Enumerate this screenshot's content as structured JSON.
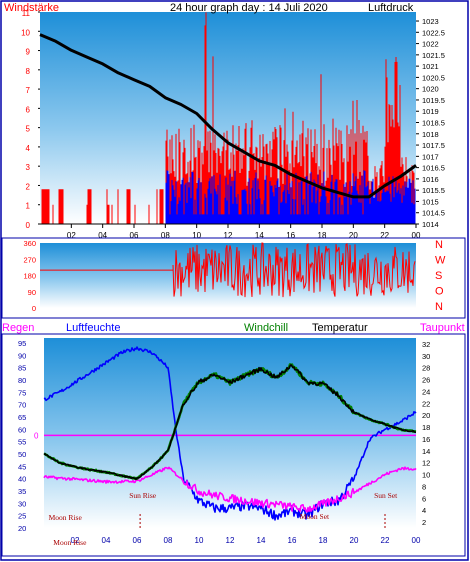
{
  "titles": {
    "windstaerke": "Windstärke",
    "main": "24 hour graph day : 14 Juli 2020",
    "luftdruck": "Luftdruck",
    "regen": "Regen",
    "luftfeuchte": "Luftfeuchte",
    "windchill": "Windchill",
    "temperatur": "Temperatur",
    "taupunkt": "Taupunkt"
  },
  "colors": {
    "wind": "#ff0000",
    "gust_bars": "#0000ff",
    "pressure": "#000000",
    "humidity": "#0000ff",
    "dewpoint": "#ff00ff",
    "windchill": "#008000",
    "rain": "#ff00ff",
    "frame": "#0000aa"
  },
  "chart_data": [
    {
      "type": "bar",
      "name": "wind_pressure",
      "x_ticks": [
        "02",
        "04",
        "06",
        "08",
        "10",
        "12",
        "14",
        "16",
        "18",
        "20",
        "22",
        "00"
      ],
      "left_ticks": [
        "0",
        "1",
        "2",
        "3",
        "4",
        "5",
        "6",
        "7",
        "8",
        "9",
        "10",
        "11"
      ],
      "right_ticks": [
        "1014",
        "1014.5",
        "1015",
        "1015.5",
        "1016",
        "1016.5",
        "1017",
        "1017.5",
        "1018",
        "1018.5",
        "1019",
        "1019.5",
        "1020",
        "1020.5",
        "1021",
        "1021.5",
        "1022",
        "1022.5",
        "1023"
      ],
      "wind_ylim": [
        0,
        11
      ],
      "pressure_ylim": [
        1014,
        1023.4
      ],
      "pressure": {
        "x": [
          0,
          1,
          2,
          3,
          4,
          5,
          6,
          7,
          8,
          9,
          10,
          11,
          12,
          13,
          14,
          15,
          16,
          17,
          18,
          19,
          20,
          21,
          22,
          23,
          24
        ],
        "y": [
          1022.4,
          1022.1,
          1021.7,
          1021.4,
          1021.1,
          1020.7,
          1020.4,
          1020.1,
          1019.6,
          1019.3,
          1018.9,
          1018.2,
          1017.6,
          1017.2,
          1016.8,
          1016.6,
          1016.2,
          1015.9,
          1015.6,
          1015.4,
          1015.2,
          1015.2,
          1015.7,
          1016.1,
          1016.6
        ]
      },
      "wind_note": "gusts 0-11 after 08:00, mostly 1-4; blue bars average 1-3"
    },
    {
      "type": "line",
      "name": "wind_direction",
      "right_labels": [
        "N",
        "W",
        "S",
        "O",
        "N"
      ],
      "left_ticks": [
        "360",
        "270",
        "180",
        "90",
        "0"
      ],
      "ylim": [
        0,
        360
      ],
      "baseline_before": 210,
      "change_hour": 8.5
    },
    {
      "type": "line",
      "name": "climate",
      "x_ticks": [
        "02",
        "04",
        "06",
        "08",
        "10",
        "12",
        "14",
        "16",
        "18",
        "20",
        "22",
        "00"
      ],
      "left_ticks": [
        "20",
        "25",
        "30",
        "35",
        "40",
        "45",
        "50",
        "55",
        "60",
        "65",
        "70",
        "75",
        "80",
        "85",
        "90",
        "95"
      ],
      "right_ticks": [
        "2",
        "4",
        "6",
        "8",
        "10",
        "12",
        "14",
        "16",
        "18",
        "20",
        "22",
        "24",
        "26",
        "28",
        "30",
        "32"
      ],
      "humidity_ylim": [
        20,
        97
      ],
      "temp_ylim": [
        1,
        33
      ],
      "rain_label": "0",
      "annotations": [
        "Sun Rise",
        "Sun Set",
        "Moon Rise",
        "Moon Set",
        "Moon Rise"
      ],
      "humidity": {
        "x": [
          0,
          1,
          2,
          3,
          4,
          5,
          5.5,
          6,
          7,
          8,
          8.5,
          9,
          10,
          11,
          12,
          13,
          14,
          15,
          16,
          17,
          18,
          19,
          20,
          21,
          22,
          23,
          24
        ],
        "y": [
          72,
          75,
          79,
          83,
          87,
          91,
          92,
          93,
          91,
          85,
          60,
          40,
          31,
          28,
          28,
          29,
          28,
          25,
          27,
          25,
          30,
          31,
          40,
          56,
          60,
          63,
          67
        ]
      },
      "temperature": {
        "x": [
          0,
          1,
          2,
          3,
          4,
          5,
          6,
          7,
          8,
          9,
          10,
          11,
          12,
          13,
          14,
          15,
          16,
          17,
          18,
          19,
          20,
          21,
          22,
          23,
          24
        ],
        "y": [
          13.5,
          12,
          11.3,
          10.8,
          10.4,
          9.8,
          9.3,
          11.3,
          14,
          22,
          25.6,
          26.8,
          25.5,
          26.7,
          27.8,
          26.3,
          28.5,
          25.5,
          25.3,
          23.3,
          20.5,
          19.3,
          18.5,
          17.6,
          17.2
        ]
      },
      "dewpoint": {
        "x": [
          0,
          1,
          2,
          3,
          4,
          5,
          6,
          7,
          8,
          9,
          10,
          11,
          12,
          13,
          14,
          15,
          16,
          17,
          18,
          19,
          20,
          21,
          22,
          23,
          24
        ],
        "y": [
          9.6,
          9.4,
          9.2,
          9,
          8.8,
          8.8,
          8.9,
          10,
          11.2,
          9,
          7.2,
          6.5,
          6,
          5.6,
          5.2,
          5,
          4.5,
          4.2,
          5,
          6,
          7,
          8.5,
          10,
          11,
          11
        ]
      }
    }
  ]
}
